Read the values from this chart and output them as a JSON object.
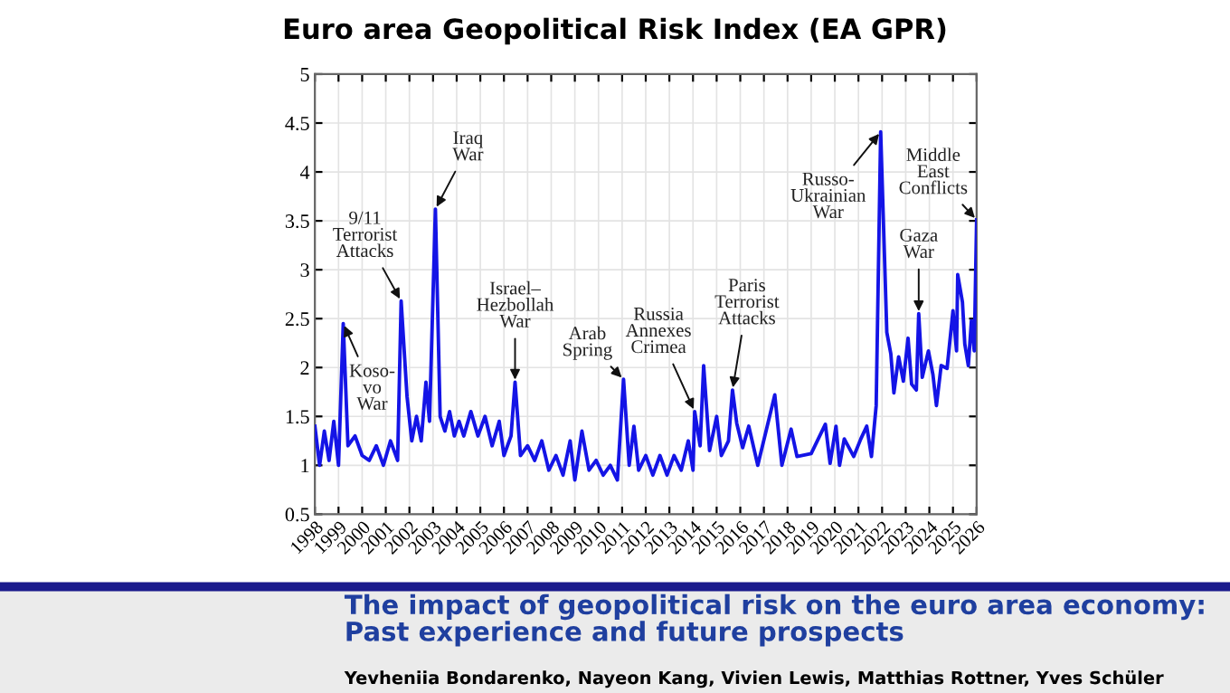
{
  "chart_data": {
    "type": "line",
    "title": "Euro area Geopolitical Risk Index (EA GPR)",
    "subtitle": "The impact of geopolitical risk on the euro area economy: Past experience and future prospects",
    "series": [
      {
        "color": "#1414e6",
        "x": [
          1998.0,
          1998.2,
          1998.4,
          1998.6,
          1998.8,
          1999.0,
          1999.2,
          1999.4,
          1999.7,
          2000.0,
          2000.3,
          2000.6,
          2000.9,
          2001.2,
          2001.5,
          2001.65,
          2001.9,
          2002.1,
          2002.3,
          2002.5,
          2002.7,
          2002.85,
          2003.1,
          2003.3,
          2003.5,
          2003.7,
          2003.9,
          2004.1,
          2004.3,
          2004.6,
          2004.9,
          2005.2,
          2005.5,
          2005.8,
          2006.0,
          2006.3,
          2006.47,
          2006.7,
          2007.0,
          2007.3,
          2007.6,
          2007.9,
          2008.2,
          2008.5,
          2008.8,
          2009.0,
          2009.3,
          2009.6,
          2009.9,
          2010.2,
          2010.5,
          2010.8,
          2011.06,
          2011.3,
          2011.5,
          2011.7,
          2012.0,
          2012.3,
          2012.6,
          2012.9,
          2013.2,
          2013.5,
          2013.8,
          2014.0,
          2014.07,
          2014.3,
          2014.45,
          2014.7,
          2015.0,
          2015.2,
          2015.5,
          2015.67,
          2015.85,
          2016.1,
          2016.36,
          2016.74,
          2017.46,
          2017.76,
          2018.15,
          2018.4,
          2019.0,
          2019.6,
          2019.8,
          2020.05,
          2020.2,
          2020.4,
          2020.8,
          2021.1,
          2021.35,
          2021.55,
          2021.75,
          2021.94,
          2022.2,
          2022.37,
          2022.5,
          2022.7,
          2022.9,
          2023.1,
          2023.25,
          2023.45,
          2023.55,
          2023.7,
          2023.96,
          2024.15,
          2024.3,
          2024.5,
          2024.75,
          2025.0,
          2025.15,
          2025.2,
          2025.4,
          2025.5,
          2025.65,
          2025.78,
          2025.9,
          2026.0
        ],
        "values": [
          1.4,
          1.0,
          1.35,
          1.05,
          1.45,
          1.0,
          2.45,
          1.2,
          1.3,
          1.1,
          1.05,
          1.2,
          1.0,
          1.25,
          1.05,
          2.68,
          1.7,
          1.25,
          1.5,
          1.25,
          1.85,
          1.45,
          3.62,
          1.5,
          1.35,
          1.55,
          1.3,
          1.45,
          1.3,
          1.55,
          1.3,
          1.5,
          1.2,
          1.45,
          1.1,
          1.3,
          1.85,
          1.1,
          1.2,
          1.05,
          1.25,
          0.95,
          1.1,
          0.9,
          1.25,
          0.85,
          1.35,
          0.95,
          1.05,
          0.9,
          1.0,
          0.85,
          1.88,
          1.0,
          1.4,
          0.95,
          1.1,
          0.9,
          1.1,
          0.9,
          1.1,
          0.95,
          1.25,
          0.95,
          1.55,
          1.2,
          2.02,
          1.15,
          1.5,
          1.1,
          1.25,
          1.77,
          1.43,
          1.18,
          1.4,
          1.0,
          1.72,
          1.0,
          1.37,
          1.09,
          1.12,
          1.42,
          1.02,
          1.4,
          1.0,
          1.27,
          1.09,
          1.27,
          1.4,
          1.09,
          1.61,
          4.41,
          2.36,
          2.14,
          1.74,
          2.11,
          1.86,
          2.3,
          1.83,
          1.77,
          2.55,
          1.9,
          2.17,
          1.93,
          1.61,
          2.02,
          1.99,
          2.58,
          2.17,
          2.95,
          2.67,
          2.24,
          2.02,
          2.48,
          2.17,
          3.51
        ]
      }
    ],
    "xlim": [
      1998,
      2026
    ],
    "xticks": [
      1998,
      1999,
      2000,
      2001,
      2002,
      2003,
      2004,
      2005,
      2006,
      2007,
      2008,
      2009,
      2010,
      2011,
      2012,
      2013,
      2014,
      2015,
      2016,
      2017,
      2018,
      2019,
      2020,
      2021,
      2022,
      2023,
      2024,
      2025,
      2026
    ],
    "ylim": [
      0.5,
      5
    ],
    "yticks": [
      0.5,
      1,
      1.5,
      2,
      2.5,
      3,
      3.5,
      4,
      4.5,
      5
    ],
    "grid": true,
    "annotations": [
      {
        "text": "Koso-\nvo\nWar",
        "x": 1999.2,
        "y": 2.45
      },
      {
        "text": "9/11\nTerrorist\nAttacks",
        "x": 2001.65,
        "y": 2.68
      },
      {
        "text": "Iraq\nWar",
        "x": 2003.1,
        "y": 3.62
      },
      {
        "text": "Israel–\nHezbollah\nWar",
        "x": 2006.47,
        "y": 1.85
      },
      {
        "text": "Arab\nSpring",
        "x": 2011.06,
        "y": 1.88
      },
      {
        "text": "Russia\nAnnexes\nCrimea",
        "x": 2014.07,
        "y": 1.55
      },
      {
        "text": "Paris\nTerrorist\nAttacks",
        "x": 2015.67,
        "y": 1.77
      },
      {
        "text": "Russo-\nUkrainian\nWar",
        "x": 2021.94,
        "y": 4.41
      },
      {
        "text": "Gaza\nWar",
        "x": 2023.55,
        "y": 2.55
      },
      {
        "text": "Middle\nEast\nConflicts",
        "x": 2026.0,
        "y": 3.51
      },
      "Yevheniia Bondarenko, Nayeon Kang, Vivien Lewis, Matthias Rottner, Yves Schüler"
    ]
  }
}
